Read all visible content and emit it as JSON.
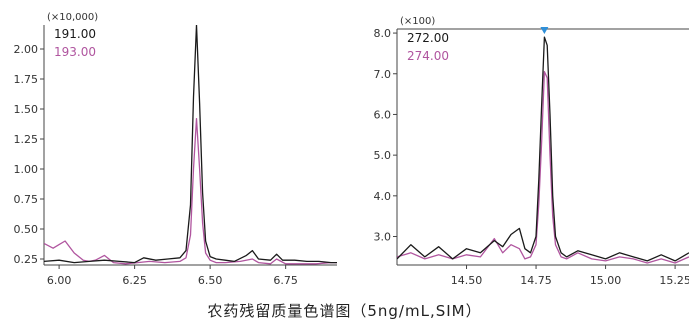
{
  "caption": "农药残留质量色谱图（5ng/mL,SIM）",
  "chart_data": [
    {
      "type": "line",
      "title": "",
      "multiplier_label": "(×10,000)",
      "xlabel": "",
      "ylabel": "",
      "xlim": [
        5.95,
        6.92
      ],
      "ylim": [
        0.2,
        2.2
      ],
      "x_ticks": [
        6.0,
        6.25,
        6.5,
        6.75
      ],
      "x_tick_labels": [
        "6.00",
        "6.25",
        "6.50",
        "6.75"
      ],
      "y_ticks": [
        0.25,
        0.5,
        0.75,
        1.0,
        1.25,
        1.5,
        1.75,
        2.0
      ],
      "y_tick_labels": [
        "0.25",
        "0.50",
        "0.75",
        "1.00",
        "1.25",
        "1.50",
        "1.75",
        "2.00"
      ],
      "grid": false,
      "legend": "top-left",
      "series": [
        {
          "name": "191.00",
          "color": "#1a1a1a",
          "x": [
            5.95,
            6.0,
            6.05,
            6.1,
            6.15,
            6.2,
            6.25,
            6.28,
            6.32,
            6.36,
            6.4,
            6.42,
            6.435,
            6.445,
            6.455,
            6.465,
            6.475,
            6.485,
            6.5,
            6.52,
            6.55,
            6.58,
            6.62,
            6.64,
            6.66,
            6.7,
            6.72,
            6.74,
            6.78,
            6.82,
            6.86,
            6.9,
            6.92
          ],
          "y": [
            0.23,
            0.24,
            0.22,
            0.23,
            0.24,
            0.23,
            0.22,
            0.26,
            0.24,
            0.25,
            0.26,
            0.32,
            0.7,
            1.6,
            2.2,
            1.55,
            0.8,
            0.4,
            0.27,
            0.25,
            0.24,
            0.23,
            0.28,
            0.32,
            0.25,
            0.24,
            0.29,
            0.24,
            0.24,
            0.23,
            0.23,
            0.22,
            0.22
          ]
        },
        {
          "name": "193.00",
          "color": "#b0559f",
          "x": [
            5.95,
            5.98,
            6.0,
            6.02,
            6.05,
            6.08,
            6.1,
            6.12,
            6.15,
            6.18,
            6.22,
            6.26,
            6.3,
            6.35,
            6.4,
            6.42,
            6.435,
            6.445,
            6.455,
            6.465,
            6.475,
            6.485,
            6.5,
            6.52,
            6.55,
            6.6,
            6.64,
            6.66,
            6.7,
            6.72,
            6.75,
            6.8,
            6.85,
            6.9,
            6.92
          ],
          "y": [
            0.38,
            0.34,
            0.37,
            0.4,
            0.3,
            0.24,
            0.23,
            0.24,
            0.28,
            0.22,
            0.21,
            0.22,
            0.23,
            0.22,
            0.23,
            0.26,
            0.45,
            1.0,
            1.42,
            1.0,
            0.55,
            0.3,
            0.24,
            0.22,
            0.22,
            0.23,
            0.25,
            0.22,
            0.21,
            0.25,
            0.21,
            0.21,
            0.21,
            0.22,
            0.22
          ]
        }
      ]
    },
    {
      "type": "line",
      "title": "",
      "multiplier_label": "(×100)",
      "xlabel": "",
      "ylabel": "",
      "xlim": [
        14.25,
        15.3
      ],
      "ylim": [
        2.3,
        8.1
      ],
      "x_ticks": [
        14.5,
        14.75,
        15.0,
        15.25
      ],
      "x_tick_labels": [
        "14.50",
        "14.75",
        "15.00",
        "15.25"
      ],
      "y_ticks": [
        3.0,
        4.0,
        5.0,
        6.0,
        7.0,
        8.0
      ],
      "y_tick_labels": [
        "3.0",
        "4.0",
        "5.0",
        "6.0",
        "7.0",
        "8.0"
      ],
      "grid": false,
      "legend": "top-left",
      "series": [
        {
          "name": "272.00",
          "color": "#1a1a1a",
          "x": [
            14.25,
            14.3,
            14.35,
            14.4,
            14.45,
            14.5,
            14.55,
            14.6,
            14.63,
            14.66,
            14.69,
            14.71,
            14.73,
            14.75,
            14.76,
            14.77,
            14.78,
            14.79,
            14.8,
            14.81,
            14.82,
            14.84,
            14.86,
            14.9,
            14.95,
            15.0,
            15.05,
            15.1,
            15.15,
            15.2,
            15.25,
            15.3
          ],
          "y": [
            2.45,
            2.8,
            2.5,
            2.75,
            2.45,
            2.7,
            2.6,
            2.9,
            2.75,
            3.05,
            3.2,
            2.7,
            2.6,
            3.0,
            4.4,
            6.2,
            7.9,
            7.7,
            6.0,
            4.0,
            3.0,
            2.6,
            2.5,
            2.65,
            2.55,
            2.45,
            2.6,
            2.5,
            2.4,
            2.55,
            2.4,
            2.6
          ]
        },
        {
          "name": "274.00",
          "color": "#b0559f",
          "x": [
            14.25,
            14.3,
            14.35,
            14.4,
            14.45,
            14.5,
            14.55,
            14.6,
            14.63,
            14.66,
            14.69,
            14.71,
            14.73,
            14.75,
            14.76,
            14.77,
            14.78,
            14.79,
            14.8,
            14.81,
            14.82,
            14.84,
            14.86,
            14.9,
            14.95,
            15.0,
            15.05,
            15.1,
            15.15,
            15.2,
            15.25,
            15.3
          ],
          "y": [
            2.5,
            2.6,
            2.45,
            2.55,
            2.45,
            2.55,
            2.5,
            2.95,
            2.6,
            2.8,
            2.7,
            2.45,
            2.5,
            2.8,
            3.8,
            5.3,
            7.05,
            6.9,
            5.0,
            3.5,
            2.8,
            2.5,
            2.45,
            2.6,
            2.45,
            2.4,
            2.5,
            2.45,
            2.35,
            2.45,
            2.35,
            2.5
          ]
        }
      ]
    }
  ]
}
